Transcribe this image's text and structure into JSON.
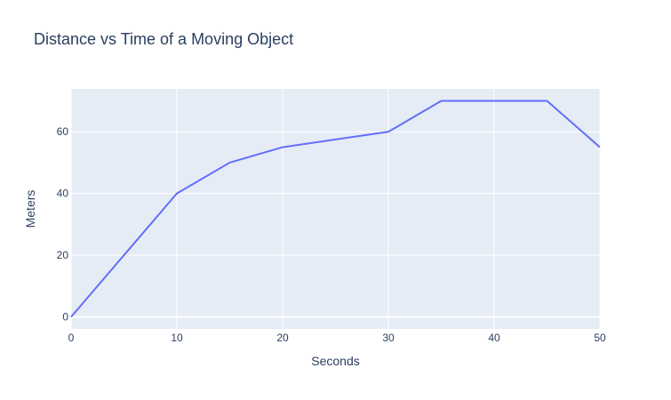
{
  "chart_data": {
    "type": "line",
    "title": "Distance vs Time of a Moving Object",
    "xlabel": "Seconds",
    "ylabel": "Meters",
    "xlim": [
      0,
      50
    ],
    "ylim": [
      -3.9,
      73.9
    ],
    "x_ticks": [
      0,
      10,
      20,
      30,
      40,
      50
    ],
    "y_ticks": [
      0,
      20,
      40,
      60
    ],
    "grid": true,
    "series": [
      {
        "x": [
          0,
          5,
          10,
          15,
          20,
          25,
          30,
          35,
          40,
          45,
          50
        ],
        "y": [
          0,
          20,
          40,
          50,
          55,
          57.5,
          60,
          70,
          70,
          70,
          55
        ],
        "color": "#636efa"
      }
    ],
    "colors": {
      "plot_background": "#e5ecf6",
      "grid": "#ffffff",
      "text": "#2a3f5f"
    }
  }
}
